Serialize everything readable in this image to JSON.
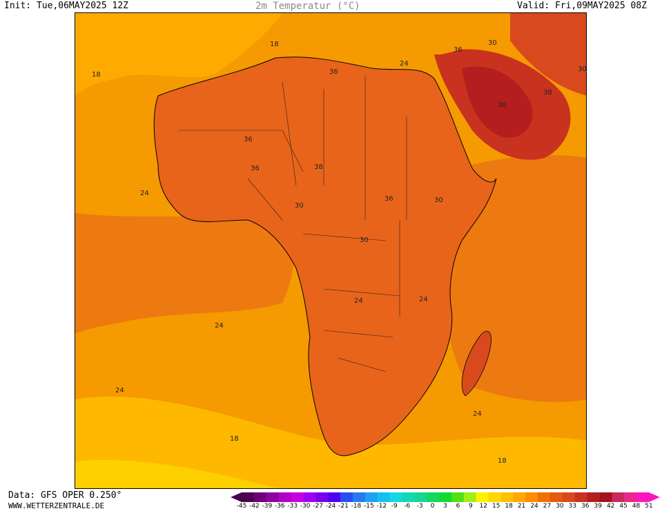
{
  "header": {
    "init": "Init: Tue,06MAY2025 12Z",
    "title": "2m Temperatur (°C)",
    "valid": "Valid: Fri,09MAY2025 08Z"
  },
  "footer": {
    "data_source": "Data: GFS OPER 0.250°",
    "website": "WWW.WETTERZENTRALE.DE"
  },
  "legend": {
    "ticks": [
      "-45",
      "-42",
      "-39",
      "-36",
      "-33",
      "-30",
      "-27",
      "-24",
      "-21",
      "-18",
      "-15",
      "-12",
      "-9",
      "-6",
      "-3",
      "0",
      "3",
      "6",
      "9",
      "12",
      "15",
      "18",
      "21",
      "24",
      "27",
      "30",
      "33",
      "36",
      "39",
      "42",
      "45",
      "48",
      "51"
    ],
    "colors": [
      "#4b0050",
      "#6f007a",
      "#8e00a0",
      "#b000c8",
      "#c800e0",
      "#a000f0",
      "#7800f0",
      "#5000f0",
      "#2850f0",
      "#2878f0",
      "#1ea0f0",
      "#14c0f0",
      "#14d8e0",
      "#14d8b4",
      "#14d890",
      "#14d860",
      "#14d830",
      "#50e014",
      "#a0f014",
      "#fff000",
      "#ffd700",
      "#ffc000",
      "#ffa800",
      "#ff8c00",
      "#f07000",
      "#e45a10",
      "#d84a1e",
      "#c8321e",
      "#b41e1e",
      "#a0141e",
      "#c8285a",
      "#e8288c",
      "#ff14c0"
    ]
  },
  "map": {
    "contour_labels": [
      {
        "text": "18"
      },
      {
        "text": "18"
      },
      {
        "text": "36"
      },
      {
        "text": "24"
      },
      {
        "text": "36"
      },
      {
        "text": "30"
      },
      {
        "text": "30"
      },
      {
        "text": "38"
      },
      {
        "text": "30"
      },
      {
        "text": "36"
      },
      {
        "text": "36"
      },
      {
        "text": "38"
      },
      {
        "text": "36"
      },
      {
        "text": "24"
      },
      {
        "text": "30"
      },
      {
        "text": "30"
      },
      {
        "text": "30"
      },
      {
        "text": "24"
      },
      {
        "text": "24"
      },
      {
        "text": "24"
      },
      {
        "text": "24"
      },
      {
        "text": "24"
      },
      {
        "text": "18"
      },
      {
        "text": "18"
      }
    ]
  }
}
